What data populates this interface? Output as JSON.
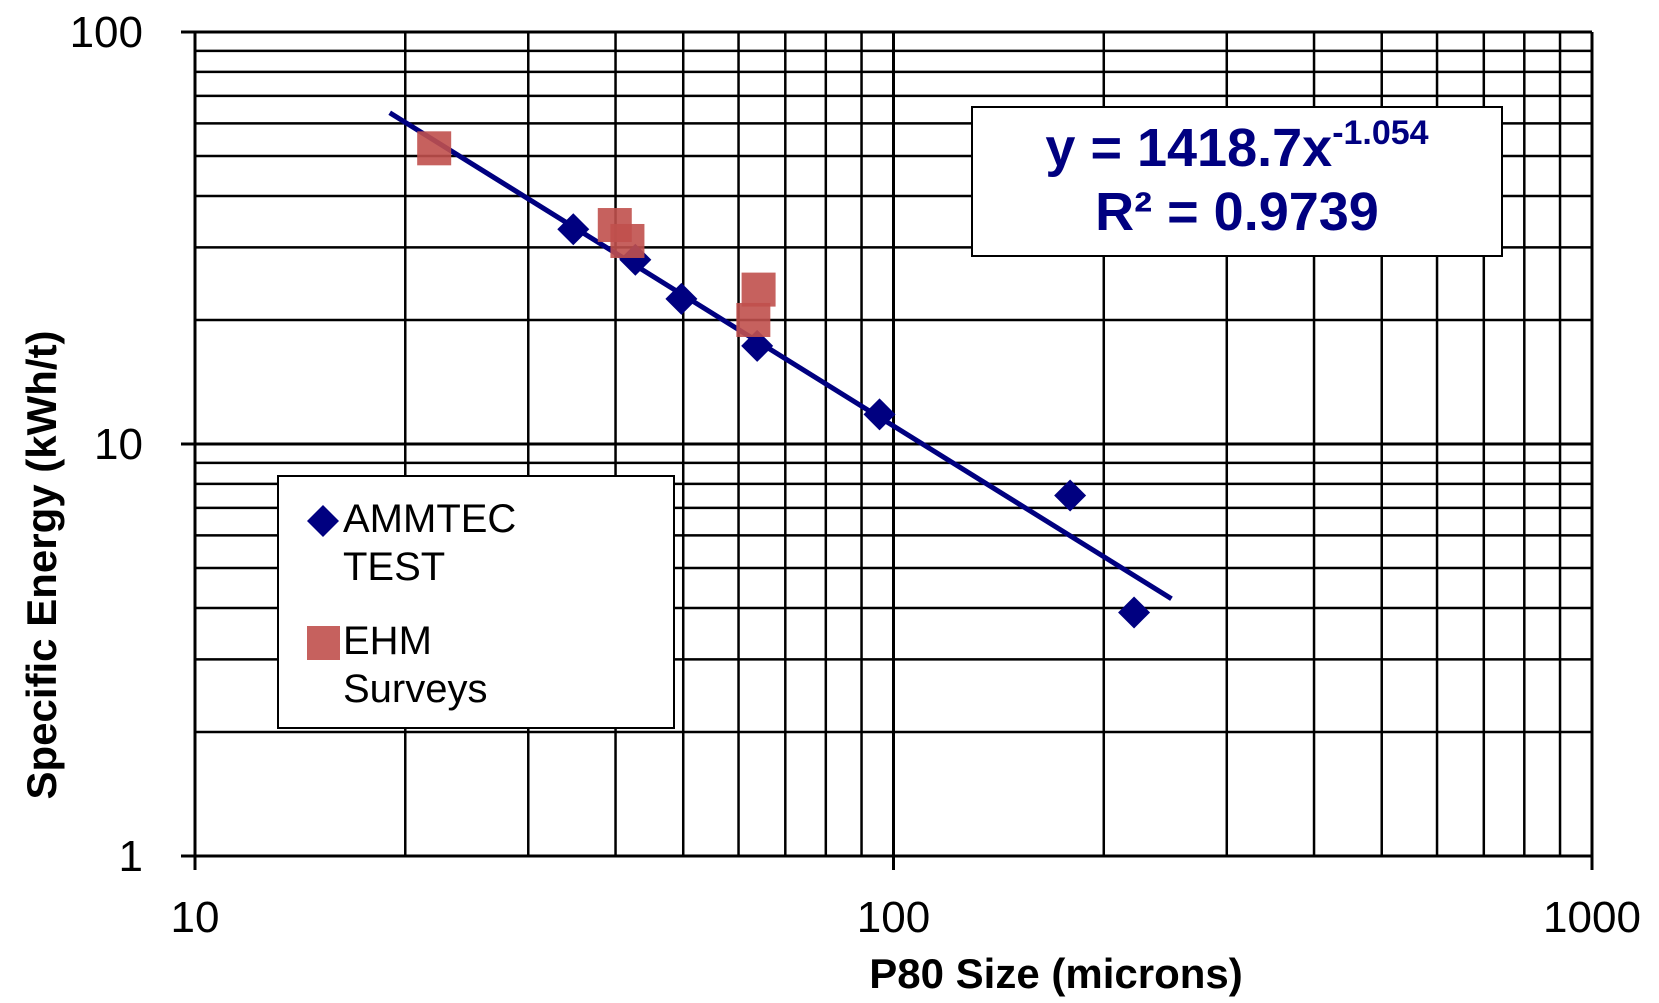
{
  "chart_data": {
    "type": "scatter",
    "x_label": "P80 Size (microns)",
    "y_label": "Specific Energy (kWh/t)",
    "log_x": true,
    "log_y": true,
    "grid": true,
    "xlim": [
      10,
      1000
    ],
    "ylim": [
      1,
      100
    ],
    "xticks": [
      10,
      100,
      1000
    ],
    "yticks": [
      1,
      10,
      100
    ],
    "xminor": [
      20,
      30,
      40,
      50,
      60,
      70,
      80,
      90,
      200,
      300,
      400,
      500,
      600,
      700,
      800,
      900
    ],
    "yminor": [
      2,
      3,
      4,
      5,
      6,
      7,
      8,
      9,
      20,
      30,
      40,
      50,
      60,
      70,
      80,
      90
    ],
    "legend": "lower left",
    "series": [
      {
        "name": "AMMTEC TEST",
        "color": "#000080",
        "marker": "diamond",
        "x": [
          34.8,
          42.7,
          49.7,
          63.8,
          95.5,
          179,
          221
        ],
        "values": [
          33.2,
          28.0,
          22.5,
          17.3,
          11.8,
          7.5,
          3.9
        ]
      },
      {
        "name": "EHM Surveys",
        "color": "#c0504d",
        "marker": "square",
        "x": [
          22.0,
          39.9,
          41.6,
          64.1,
          63.0
        ],
        "values": [
          52.2,
          34.0,
          31.1,
          23.7,
          20.0
        ]
      }
    ],
    "trendline": {
      "color": "#000080",
      "x": [
        19,
        250
      ],
      "values": [
        63.7,
        4.21
      ]
    },
    "annotation": {
      "equation": "y = 1418.7x",
      "exponent": "-1.054",
      "r_squared": "R² = 0.9739"
    }
  }
}
